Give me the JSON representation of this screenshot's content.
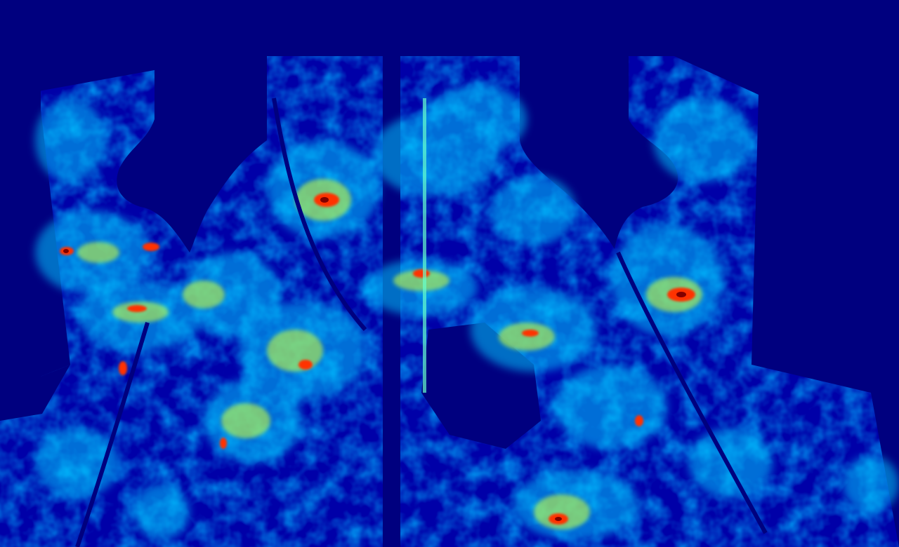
{
  "image": {
    "kind": "jet-colormap-heatmap",
    "colormap": [
      "#000080",
      "#0000ff",
      "#0080ff",
      "#00ffff",
      "#80ff80",
      "#ffff00",
      "#ff8000",
      "#ff0000",
      "#800000"
    ],
    "background": "#000080"
  }
}
